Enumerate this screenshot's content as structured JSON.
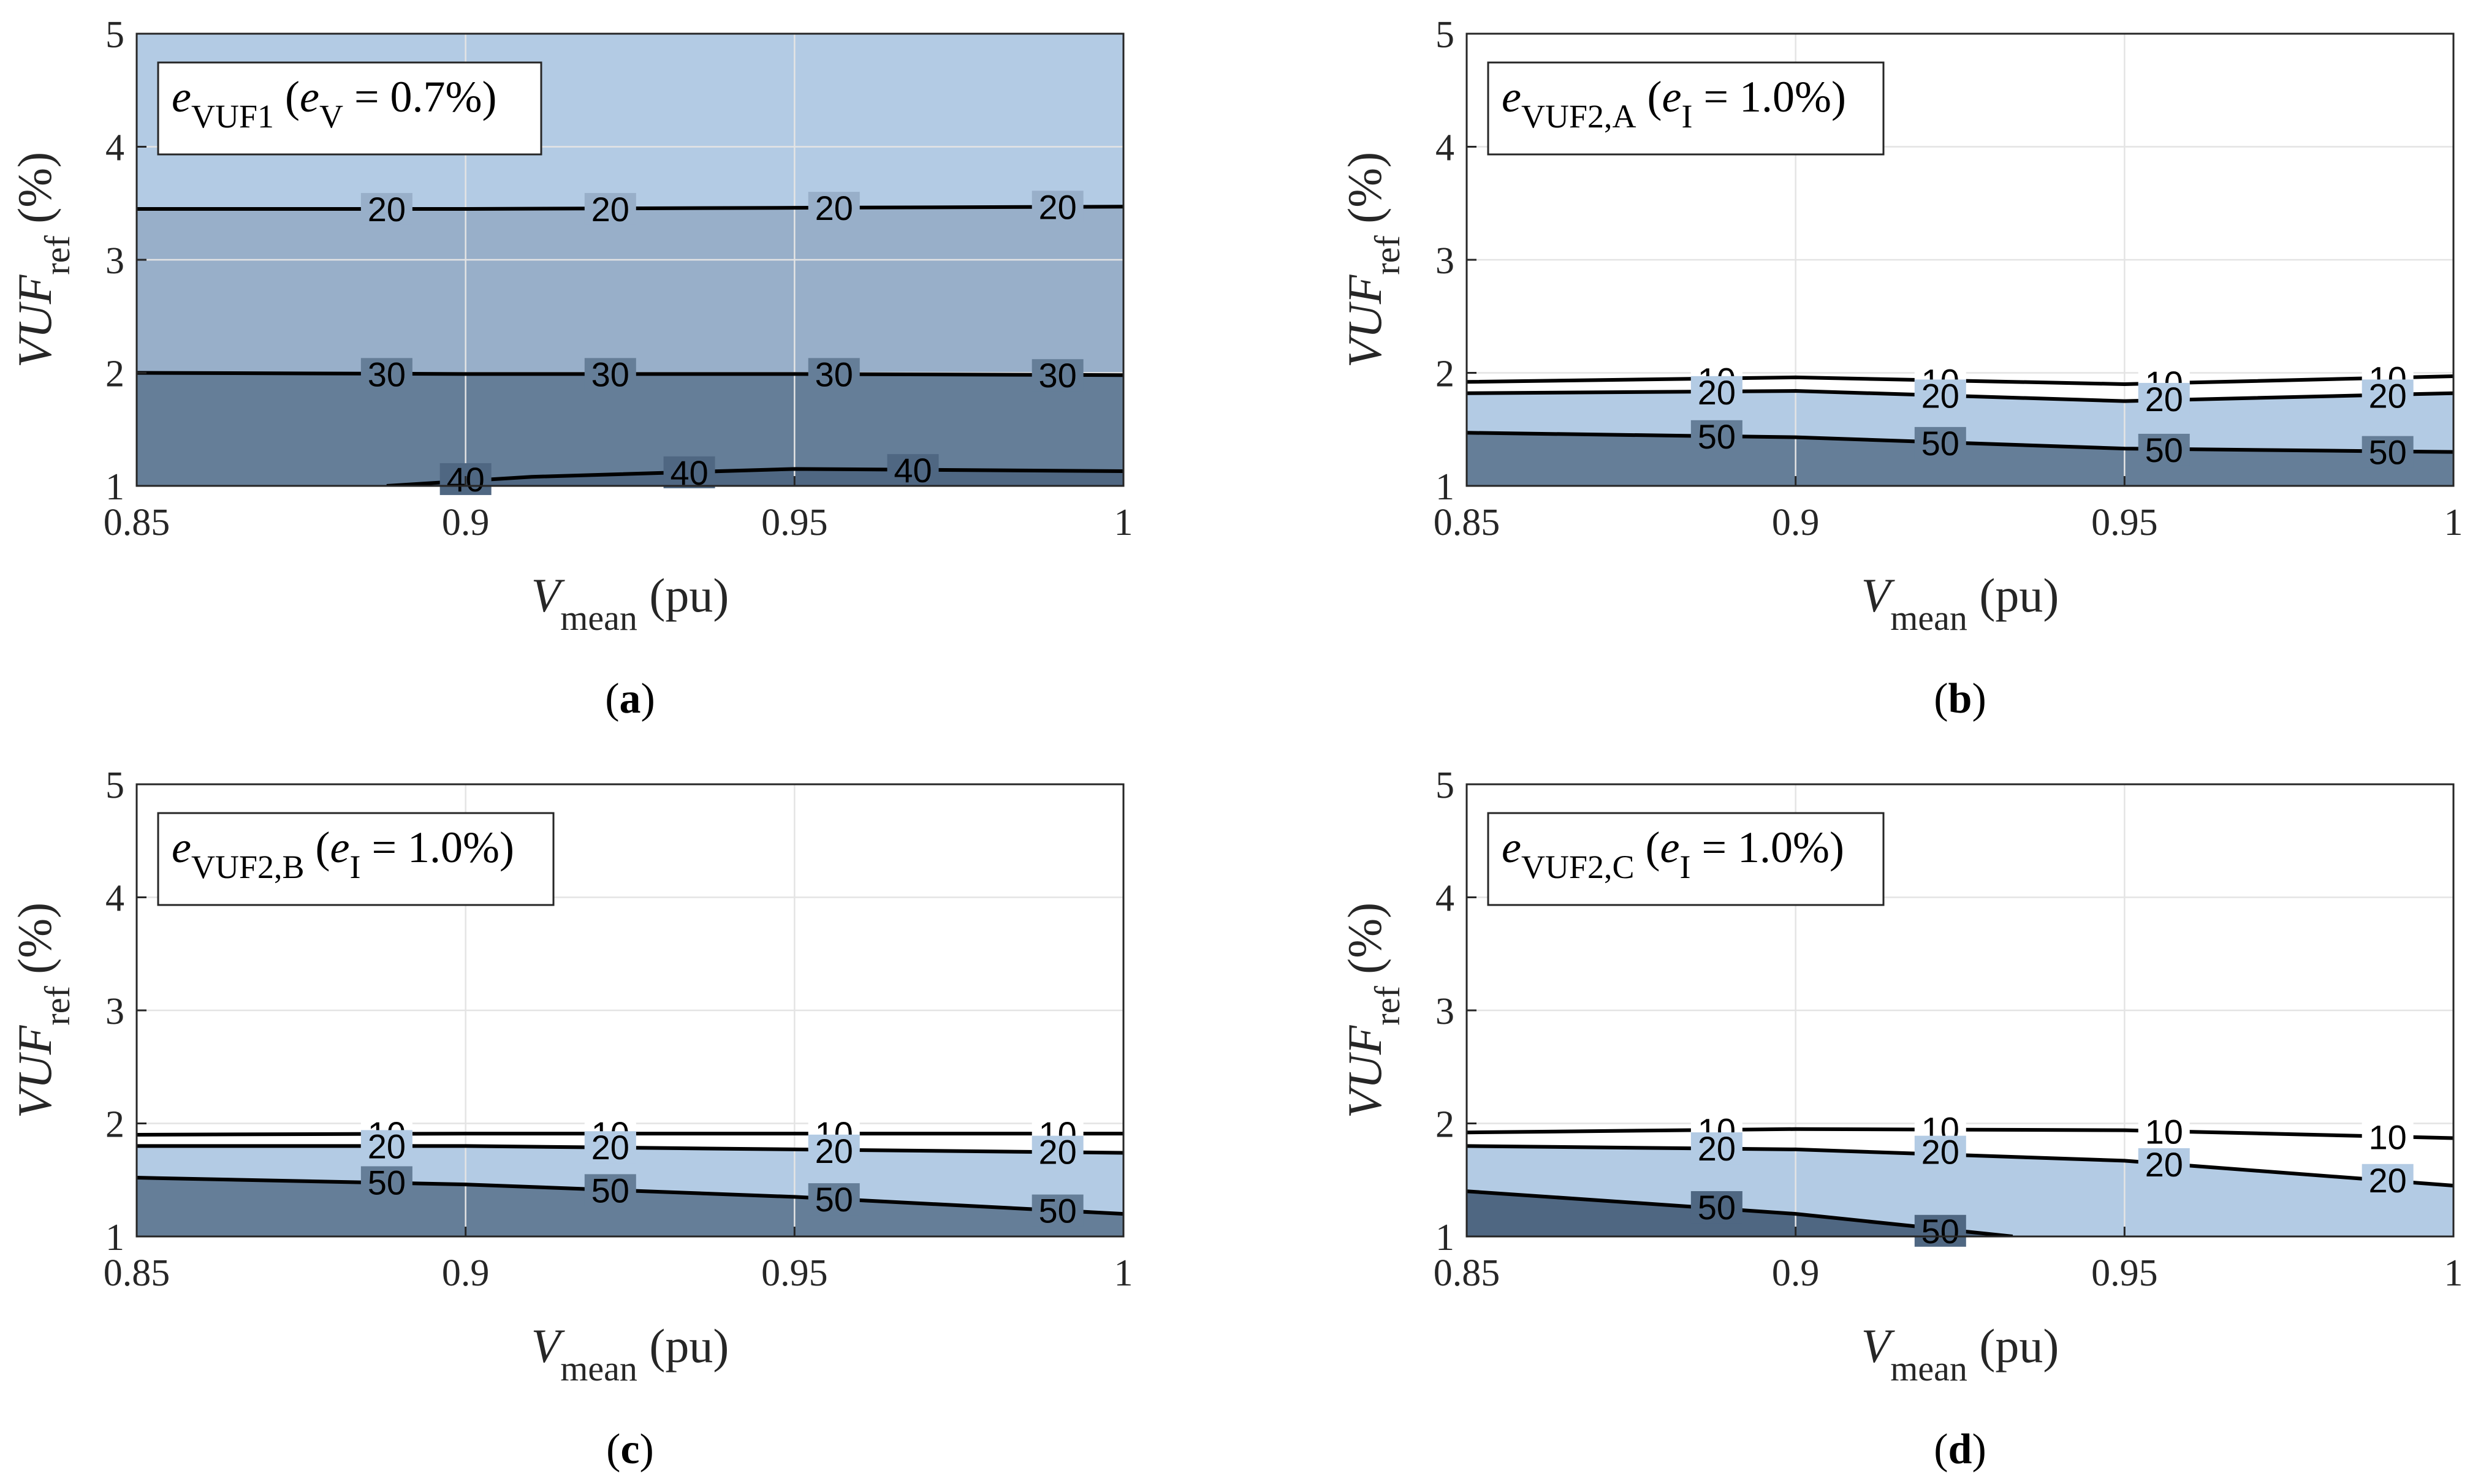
{
  "figure": {
    "axis_labels": {
      "x_main": "V",
      "x_sub": "mean",
      "x_unit": " (pu)",
      "y_main": "VUF",
      "y_sub": "ref",
      "y_unit": " (%)"
    }
  },
  "chart_data": [
    {
      "type": "contour",
      "panel": "a",
      "panel_label": "a",
      "legend": {
        "main": "e",
        "sub": "VUF1",
        "paren_main": "e",
        "paren_sub": "V",
        "rest": " = 0.7%)"
      },
      "xlim": [
        0.85,
        1.0
      ],
      "ylim": [
        1,
        5
      ],
      "xticks": [
        "0.85",
        "0.9",
        "0.95",
        "1"
      ],
      "yticks": [
        "1",
        "2",
        "3",
        "4",
        "5"
      ],
      "xlabel": "V mean (pu)",
      "ylabel": "VUF ref (%)",
      "fill_colors": [
        "#b3cbe4",
        "#98afc9",
        "#657e98",
        "#4f6782"
      ],
      "contours": [
        {
          "level": 20,
          "points": [
            [
              0.85,
              3.45
            ],
            [
              0.9,
              3.45
            ],
            [
              0.95,
              3.46
            ],
            [
              1.0,
              3.47
            ]
          ],
          "labels": [
            [
              0.888,
              3.45
            ],
            [
              0.922,
              3.45
            ],
            [
              0.956,
              3.46
            ],
            [
              0.99,
              3.47
            ]
          ]
        },
        {
          "level": 30,
          "points": [
            [
              0.85,
              2.0
            ],
            [
              0.9,
              1.99
            ],
            [
              0.95,
              1.99
            ],
            [
              1.0,
              1.98
            ]
          ],
          "labels": [
            [
              0.888,
              1.99
            ],
            [
              0.922,
              1.99
            ],
            [
              0.956,
              1.99
            ],
            [
              0.99,
              1.98
            ]
          ]
        },
        {
          "level": 40,
          "points": [
            [
              0.888,
              1.0
            ],
            [
              0.91,
              1.08
            ],
            [
              0.95,
              1.15
            ],
            [
              1.0,
              1.13
            ]
          ],
          "labels": [
            [
              0.9,
              1.06
            ],
            [
              0.934,
              1.12
            ],
            [
              0.968,
              1.14
            ]
          ]
        }
      ]
    },
    {
      "type": "contour",
      "panel": "b",
      "panel_label": "b",
      "legend": {
        "main": "e",
        "sub": "VUF2,A",
        "paren_main": "e",
        "paren_sub": "I",
        "rest": " = 1.0%)"
      },
      "xlim": [
        0.85,
        1.0
      ],
      "ylim": [
        1,
        5
      ],
      "xticks": [
        "0.85",
        "0.9",
        "0.95",
        "1"
      ],
      "yticks": [
        "1",
        "2",
        "3",
        "4",
        "5"
      ],
      "xlabel": "V mean (pu)",
      "ylabel": "VUF ref (%)",
      "fill_colors": [
        "#ffffff",
        "#ffffff",
        "#b3cbe4",
        "#657e98"
      ],
      "contours": [
        {
          "level": 10,
          "points": [
            [
              0.85,
              1.92
            ],
            [
              0.9,
              1.96
            ],
            [
              0.95,
              1.9
            ],
            [
              1.0,
              1.97
            ]
          ],
          "labels": [
            [
              0.888,
              1.94
            ],
            [
              0.922,
              1.93
            ],
            [
              0.956,
              1.91
            ],
            [
              0.99,
              1.95
            ]
          ]
        },
        {
          "level": 20,
          "points": [
            [
              0.85,
              1.82
            ],
            [
              0.9,
              1.84
            ],
            [
              0.95,
              1.75
            ],
            [
              1.0,
              1.82
            ]
          ],
          "labels": [
            [
              0.888,
              1.83
            ],
            [
              0.922,
              1.8
            ],
            [
              0.956,
              1.77
            ],
            [
              0.99,
              1.8
            ]
          ]
        },
        {
          "level": 50,
          "points": [
            [
              0.85,
              1.47
            ],
            [
              0.9,
              1.43
            ],
            [
              0.95,
              1.33
            ],
            [
              1.0,
              1.3
            ]
          ],
          "labels": [
            [
              0.888,
              1.44
            ],
            [
              0.922,
              1.38
            ],
            [
              0.956,
              1.32
            ],
            [
              0.99,
              1.3
            ]
          ]
        }
      ]
    },
    {
      "type": "contour",
      "panel": "c",
      "panel_label": "c",
      "legend": {
        "main": "e",
        "sub": "VUF2,B",
        "paren_main": "e",
        "paren_sub": "I",
        "rest": " = 1.0%)"
      },
      "xlim": [
        0.85,
        1.0
      ],
      "ylim": [
        1,
        5
      ],
      "xticks": [
        "0.85",
        "0.9",
        "0.95",
        "1"
      ],
      "yticks": [
        "1",
        "2",
        "3",
        "4",
        "5"
      ],
      "xlabel": "V mean (pu)",
      "ylabel": "VUF ref (%)",
      "fill_colors": [
        "#ffffff",
        "#ffffff",
        "#b3cbe4",
        "#657e98"
      ],
      "contours": [
        {
          "level": 10,
          "points": [
            [
              0.85,
              1.9
            ],
            [
              0.9,
              1.91
            ],
            [
              0.95,
              1.91
            ],
            [
              1.0,
              1.91
            ]
          ],
          "labels": [
            [
              0.888,
              1.91
            ],
            [
              0.922,
              1.91
            ],
            [
              0.956,
              1.91
            ],
            [
              0.99,
              1.91
            ]
          ]
        },
        {
          "level": 20,
          "points": [
            [
              0.85,
              1.8
            ],
            [
              0.9,
              1.8
            ],
            [
              0.95,
              1.77
            ],
            [
              1.0,
              1.74
            ]
          ],
          "labels": [
            [
              0.888,
              1.8
            ],
            [
              0.922,
              1.79
            ],
            [
              0.956,
              1.76
            ],
            [
              0.99,
              1.75
            ]
          ]
        },
        {
          "level": 50,
          "points": [
            [
              0.85,
              1.52
            ],
            [
              0.9,
              1.46
            ],
            [
              0.95,
              1.35
            ],
            [
              1.0,
              1.2
            ]
          ],
          "labels": [
            [
              0.888,
              1.48
            ],
            [
              0.922,
              1.41
            ],
            [
              0.956,
              1.33
            ],
            [
              0.99,
              1.23
            ]
          ]
        }
      ]
    },
    {
      "type": "contour",
      "panel": "d",
      "panel_label": "d",
      "legend": {
        "main": "e",
        "sub": "VUF2,C",
        "paren_main": "e",
        "paren_sub": "I",
        "rest": " = 1.0%)"
      },
      "xlim": [
        0.85,
        1.0
      ],
      "ylim": [
        1,
        5
      ],
      "xticks": [
        "0.85",
        "0.9",
        "0.95",
        "1"
      ],
      "yticks": [
        "1",
        "2",
        "3",
        "4",
        "5"
      ],
      "xlabel": "V mean (pu)",
      "ylabel": "VUF ref (%)",
      "fill_colors": [
        "#ffffff",
        "#ffffff",
        "#b3cbe4",
        "#4f6782"
      ],
      "contours": [
        {
          "level": 10,
          "points": [
            [
              0.85,
              1.92
            ],
            [
              0.9,
              1.95
            ],
            [
              0.95,
              1.94
            ],
            [
              1.0,
              1.87
            ]
          ],
          "labels": [
            [
              0.888,
              1.94
            ],
            [
              0.922,
              1.95
            ],
            [
              0.956,
              1.93
            ],
            [
              0.99,
              1.88
            ]
          ]
        },
        {
          "level": 20,
          "points": [
            [
              0.85,
              1.8
            ],
            [
              0.9,
              1.77
            ],
            [
              0.95,
              1.67
            ],
            [
              1.0,
              1.45
            ]
          ],
          "labels": [
            [
              0.888,
              1.78
            ],
            [
              0.922,
              1.75
            ],
            [
              0.956,
              1.64
            ],
            [
              0.99,
              1.5
            ]
          ]
        },
        {
          "level": 50,
          "points": [
            [
              0.85,
              1.4
            ],
            [
              0.9,
              1.2
            ],
            [
              0.933,
              1.0
            ]
          ],
          "labels": [
            [
              0.888,
              1.26
            ],
            [
              0.922,
              1.05
            ]
          ]
        }
      ]
    }
  ]
}
